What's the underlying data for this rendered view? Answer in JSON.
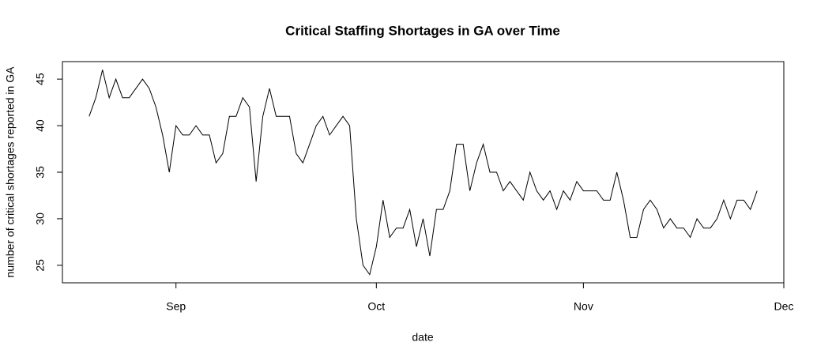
{
  "chart_data": {
    "type": "line",
    "title": "Critical Staffing Shortages in GA over Time",
    "xlabel": "date",
    "ylabel": "number of critical shortages reported in GA",
    "color": "#000000",
    "values": [
      41,
      43,
      46,
      43,
      45,
      43,
      43,
      44,
      45,
      44,
      42,
      39,
      35,
      40,
      39,
      39,
      40,
      39,
      39,
      36,
      37,
      41,
      41,
      43,
      42,
      34,
      41,
      44,
      41,
      41,
      41,
      37,
      36,
      38,
      40,
      41,
      39,
      40,
      41,
      40,
      30,
      25,
      24,
      27,
      32,
      28,
      29,
      29,
      31,
      27,
      30,
      26,
      31,
      31,
      33,
      38,
      38,
      33,
      36,
      38,
      35,
      35,
      33,
      34,
      33,
      32,
      35,
      33,
      32,
      33,
      31,
      33,
      32,
      34,
      33,
      33,
      33,
      32,
      32,
      35,
      32,
      28,
      28,
      31,
      32,
      31,
      29,
      30,
      29,
      29,
      28,
      30,
      29,
      29,
      30,
      32,
      30,
      32,
      32,
      31,
      33
    ],
    "xlim": [
      -4,
      104
    ],
    "xticks": [
      {
        "value": 13,
        "label": "Sep"
      },
      {
        "value": 43,
        "label": "Oct"
      },
      {
        "value": 74,
        "label": "Nov"
      },
      {
        "value": 104,
        "label": "Dec"
      }
    ],
    "ylim": [
      23.12,
      46.88
    ],
    "yticks": [
      25,
      30,
      35,
      40,
      45
    ]
  }
}
